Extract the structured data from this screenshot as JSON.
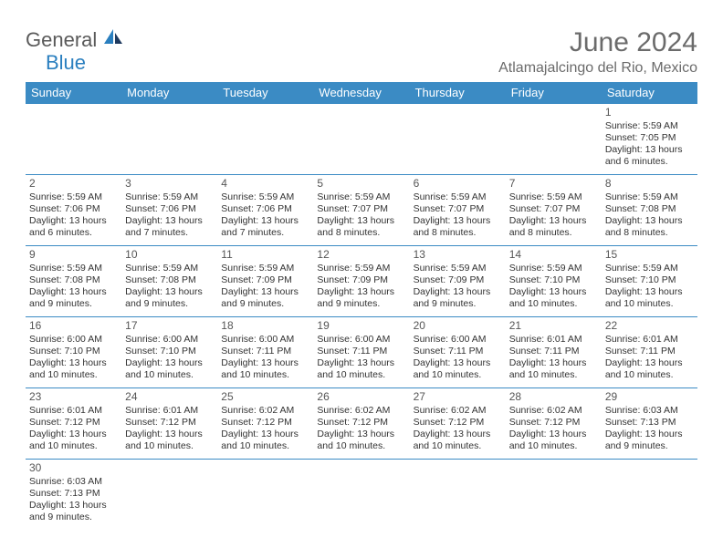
{
  "logo": {
    "text1": "General",
    "text2": "Blue",
    "text1_color": "#5a5a5a",
    "text2_color": "#2a7fbf"
  },
  "title": "June 2024",
  "location": "Atlamajalcingo del Rio, Mexico",
  "header_bg": "#3b8bc4",
  "header_fg": "#ffffff",
  "border_color": "#3b8bc4",
  "text_color": "#333333",
  "day_num_color": "#555555",
  "days_of_week": [
    "Sunday",
    "Monday",
    "Tuesday",
    "Wednesday",
    "Thursday",
    "Friday",
    "Saturday"
  ],
  "weeks": [
    [
      null,
      null,
      null,
      null,
      null,
      null,
      {
        "n": "1",
        "sunrise": "5:59 AM",
        "sunset": "7:05 PM",
        "daylight": "13 hours and 6 minutes."
      }
    ],
    [
      {
        "n": "2",
        "sunrise": "5:59 AM",
        "sunset": "7:06 PM",
        "daylight": "13 hours and 6 minutes."
      },
      {
        "n": "3",
        "sunrise": "5:59 AM",
        "sunset": "7:06 PM",
        "daylight": "13 hours and 7 minutes."
      },
      {
        "n": "4",
        "sunrise": "5:59 AM",
        "sunset": "7:06 PM",
        "daylight": "13 hours and 7 minutes."
      },
      {
        "n": "5",
        "sunrise": "5:59 AM",
        "sunset": "7:07 PM",
        "daylight": "13 hours and 8 minutes."
      },
      {
        "n": "6",
        "sunrise": "5:59 AM",
        "sunset": "7:07 PM",
        "daylight": "13 hours and 8 minutes."
      },
      {
        "n": "7",
        "sunrise": "5:59 AM",
        "sunset": "7:07 PM",
        "daylight": "13 hours and 8 minutes."
      },
      {
        "n": "8",
        "sunrise": "5:59 AM",
        "sunset": "7:08 PM",
        "daylight": "13 hours and 8 minutes."
      }
    ],
    [
      {
        "n": "9",
        "sunrise": "5:59 AM",
        "sunset": "7:08 PM",
        "daylight": "13 hours and 9 minutes."
      },
      {
        "n": "10",
        "sunrise": "5:59 AM",
        "sunset": "7:08 PM",
        "daylight": "13 hours and 9 minutes."
      },
      {
        "n": "11",
        "sunrise": "5:59 AM",
        "sunset": "7:09 PM",
        "daylight": "13 hours and 9 minutes."
      },
      {
        "n": "12",
        "sunrise": "5:59 AM",
        "sunset": "7:09 PM",
        "daylight": "13 hours and 9 minutes."
      },
      {
        "n": "13",
        "sunrise": "5:59 AM",
        "sunset": "7:09 PM",
        "daylight": "13 hours and 9 minutes."
      },
      {
        "n": "14",
        "sunrise": "5:59 AM",
        "sunset": "7:10 PM",
        "daylight": "13 hours and 10 minutes."
      },
      {
        "n": "15",
        "sunrise": "5:59 AM",
        "sunset": "7:10 PM",
        "daylight": "13 hours and 10 minutes."
      }
    ],
    [
      {
        "n": "16",
        "sunrise": "6:00 AM",
        "sunset": "7:10 PM",
        "daylight": "13 hours and 10 minutes."
      },
      {
        "n": "17",
        "sunrise": "6:00 AM",
        "sunset": "7:10 PM",
        "daylight": "13 hours and 10 minutes."
      },
      {
        "n": "18",
        "sunrise": "6:00 AM",
        "sunset": "7:11 PM",
        "daylight": "13 hours and 10 minutes."
      },
      {
        "n": "19",
        "sunrise": "6:00 AM",
        "sunset": "7:11 PM",
        "daylight": "13 hours and 10 minutes."
      },
      {
        "n": "20",
        "sunrise": "6:00 AM",
        "sunset": "7:11 PM",
        "daylight": "13 hours and 10 minutes."
      },
      {
        "n": "21",
        "sunrise": "6:01 AM",
        "sunset": "7:11 PM",
        "daylight": "13 hours and 10 minutes."
      },
      {
        "n": "22",
        "sunrise": "6:01 AM",
        "sunset": "7:11 PM",
        "daylight": "13 hours and 10 minutes."
      }
    ],
    [
      {
        "n": "23",
        "sunrise": "6:01 AM",
        "sunset": "7:12 PM",
        "daylight": "13 hours and 10 minutes."
      },
      {
        "n": "24",
        "sunrise": "6:01 AM",
        "sunset": "7:12 PM",
        "daylight": "13 hours and 10 minutes."
      },
      {
        "n": "25",
        "sunrise": "6:02 AM",
        "sunset": "7:12 PM",
        "daylight": "13 hours and 10 minutes."
      },
      {
        "n": "26",
        "sunrise": "6:02 AM",
        "sunset": "7:12 PM",
        "daylight": "13 hours and 10 minutes."
      },
      {
        "n": "27",
        "sunrise": "6:02 AM",
        "sunset": "7:12 PM",
        "daylight": "13 hours and 10 minutes."
      },
      {
        "n": "28",
        "sunrise": "6:02 AM",
        "sunset": "7:12 PM",
        "daylight": "13 hours and 10 minutes."
      },
      {
        "n": "29",
        "sunrise": "6:03 AM",
        "sunset": "7:13 PM",
        "daylight": "13 hours and 9 minutes."
      }
    ],
    [
      {
        "n": "30",
        "sunrise": "6:03 AM",
        "sunset": "7:13 PM",
        "daylight": "13 hours and 9 minutes."
      },
      null,
      null,
      null,
      null,
      null,
      null
    ]
  ],
  "labels": {
    "sunrise": "Sunrise:",
    "sunset": "Sunset:",
    "daylight": "Daylight:"
  }
}
